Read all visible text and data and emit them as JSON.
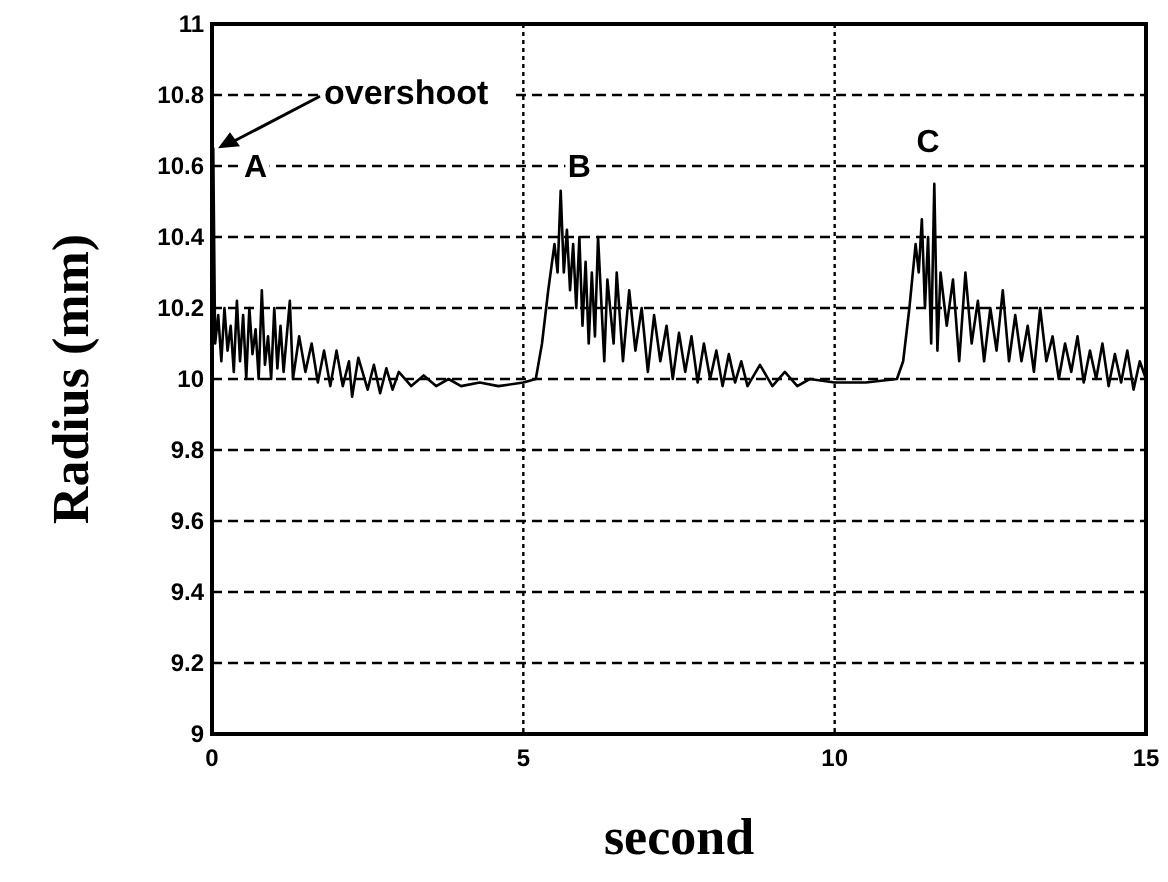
{
  "chart_data": {
    "type": "line",
    "xlabel": "second",
    "ylabel": "Radius (mm)",
    "xlim": [
      0,
      15
    ],
    "xticks": [
      0,
      5,
      10,
      15
    ],
    "ylim": [
      9,
      11
    ],
    "yticks": [
      9,
      9.2,
      9.4,
      9.6,
      9.8,
      10,
      10.2,
      10.4,
      10.6,
      10.8,
      11
    ],
    "grid": true,
    "line_style": "solid",
    "annotations": [
      {
        "text": "overshoot",
        "x": 0,
        "y": 10.65
      },
      {
        "text": "A",
        "x": 0.7,
        "y": 10.6
      },
      {
        "text": "B",
        "x": 5.9,
        "y": 10.6
      },
      {
        "text": "C",
        "x": 11.5,
        "y": 10.67
      }
    ],
    "series": [
      {
        "color": "#000000",
        "x": [
          0,
          0.02,
          0.05,
          0.1,
          0.15,
          0.2,
          0.25,
          0.3,
          0.35,
          0.4,
          0.45,
          0.5,
          0.55,
          0.6,
          0.65,
          0.7,
          0.75,
          0.8,
          0.85,
          0.9,
          0.95,
          1.0,
          1.05,
          1.1,
          1.15,
          1.25,
          1.3,
          1.4,
          1.5,
          1.6,
          1.7,
          1.8,
          1.9,
          2.0,
          2.1,
          2.2,
          2.25,
          2.35,
          2.5,
          2.6,
          2.7,
          2.8,
          2.9,
          3.0,
          3.2,
          3.4,
          3.6,
          3.8,
          4.0,
          4.3,
          4.6,
          5.0,
          5.2,
          5.3,
          5.4,
          5.5,
          5.55,
          5.6,
          5.65,
          5.7,
          5.75,
          5.8,
          5.85,
          5.9,
          5.95,
          6.0,
          6.05,
          6.1,
          6.15,
          6.2,
          6.3,
          6.35,
          6.45,
          6.5,
          6.6,
          6.7,
          6.8,
          6.9,
          7.0,
          7.1,
          7.2,
          7.3,
          7.4,
          7.5,
          7.6,
          7.7,
          7.8,
          7.9,
          8.0,
          8.1,
          8.2,
          8.3,
          8.4,
          8.5,
          8.6,
          8.8,
          9.0,
          9.2,
          9.4,
          9.6,
          10.0,
          10.5,
          11.0,
          11.1,
          11.2,
          11.3,
          11.35,
          11.4,
          11.45,
          11.5,
          11.55,
          11.6,
          11.65,
          11.7,
          11.8,
          11.9,
          12.0,
          12.1,
          12.2,
          12.3,
          12.4,
          12.5,
          12.6,
          12.7,
          12.8,
          12.9,
          13.0,
          13.1,
          13.2,
          13.3,
          13.4,
          13.5,
          13.6,
          13.7,
          13.8,
          13.9,
          14.0,
          14.1,
          14.2,
          14.3,
          14.4,
          14.5,
          14.6,
          14.7,
          14.8,
          14.9,
          15.0
        ],
        "values": [
          10.05,
          10.65,
          10.1,
          10.18,
          10.05,
          10.2,
          10.08,
          10.15,
          10.02,
          10.22,
          10.05,
          10.18,
          10.0,
          10.2,
          10.07,
          10.14,
          10.0,
          10.25,
          10.04,
          10.12,
          10.0,
          10.2,
          10.03,
          10.15,
          10.02,
          10.22,
          10.0,
          10.12,
          10.02,
          10.1,
          9.99,
          10.08,
          9.98,
          10.08,
          9.98,
          10.05,
          9.95,
          10.06,
          9.97,
          10.04,
          9.96,
          10.03,
          9.97,
          10.02,
          9.98,
          10.01,
          9.98,
          10.0,
          9.98,
          9.99,
          9.98,
          9.99,
          10.0,
          10.1,
          10.25,
          10.38,
          10.3,
          10.53,
          10.3,
          10.42,
          10.25,
          10.38,
          10.2,
          10.4,
          10.15,
          10.33,
          10.1,
          10.3,
          10.12,
          10.4,
          10.05,
          10.28,
          10.1,
          10.3,
          10.05,
          10.25,
          10.08,
          10.2,
          10.02,
          10.18,
          10.05,
          10.15,
          10.0,
          10.13,
          10.02,
          10.12,
          9.99,
          10.1,
          10.0,
          10.08,
          9.98,
          10.07,
          9.99,
          10.05,
          9.98,
          10.04,
          9.98,
          10.02,
          9.98,
          10.0,
          9.99,
          9.99,
          10.0,
          10.05,
          10.2,
          10.38,
          10.3,
          10.45,
          10.2,
          10.4,
          10.1,
          10.55,
          10.08,
          10.3,
          10.15,
          10.28,
          10.05,
          10.3,
          10.1,
          10.22,
          10.05,
          10.2,
          10.08,
          10.25,
          10.05,
          10.18,
          10.05,
          10.15,
          10.02,
          10.2,
          10.05,
          10.12,
          10.0,
          10.1,
          10.02,
          10.12,
          9.99,
          10.08,
          10.0,
          10.1,
          9.98,
          10.07,
          9.99,
          10.08,
          9.97,
          10.05,
          10.0
        ]
      }
    ]
  }
}
